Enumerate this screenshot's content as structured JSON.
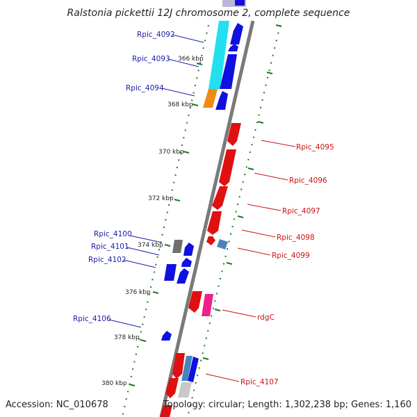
{
  "title": "Ralstonia pickettii 12J chromosome 2, complete sequence",
  "footer": {
    "accession": "Accession: NC_010678",
    "topology": "Topology: circular; Length: 1,302,238 bp; Genes: 1,160"
  },
  "colors": {
    "forward_label": "#1a1aa8",
    "reverse_label": "#cc1111",
    "cds_blue": "#1010e0",
    "cds_red": "#e01010",
    "rna_cyan": "#22e0f0",
    "orange": "#f08a10",
    "pink": "#f0208a",
    "steel_blue": "#4a84bd",
    "dark_gray": "#6f6f6f",
    "light_gray": "#c8c8c8",
    "backbone": "#7a7a7a",
    "ticks_green": "#1a7a1a"
  },
  "ticks": [
    {
      "label": "366 kbp",
      "kbp": 366
    },
    {
      "label": "368 kbp",
      "kbp": 368
    },
    {
      "label": "370 kbp",
      "kbp": 370
    },
    {
      "label": "372 kbp",
      "kbp": 372
    },
    {
      "label": "374 kbp",
      "kbp": 374
    },
    {
      "label": "376 kbp",
      "kbp": 376
    },
    {
      "label": "378 kbp",
      "kbp": 378
    },
    {
      "label": "380 kbp",
      "kbp": 380
    }
  ],
  "gene_labels": {
    "forward": [
      "Rpic_4092",
      "Rpic_4093",
      "Rpic_4094",
      "Rpic_4100",
      "Rpic_4101",
      "Rpic_4102",
      "Rpic_4106"
    ],
    "reverse": [
      "Rpic_4095",
      "Rpic_4096",
      "Rpic_4097",
      "Rpic_4098",
      "Rpic_4099",
      "rdgC",
      "Rpic_4107"
    ]
  }
}
